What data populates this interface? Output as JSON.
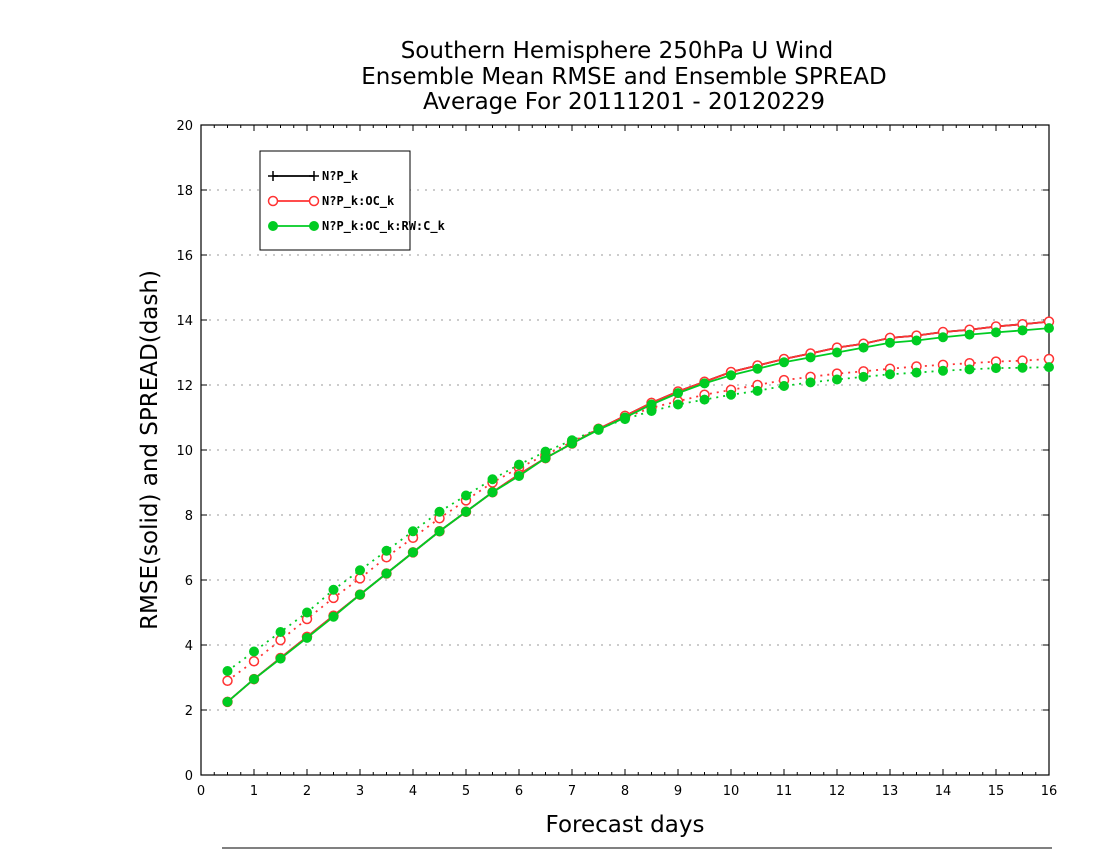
{
  "chart_data": {
    "type": "line",
    "title_lines": [
      "Southern Hemisphere 250hPa U Wind",
      "Ensemble Mean RMSE and Ensemble SPREAD",
      "Average For 20111201 - 20120229"
    ],
    "xlabel": "Forecast days",
    "ylabel": "RMSE(solid) and SPREAD(dash)",
    "xlim": [
      0,
      16
    ],
    "ylim": [
      0,
      20
    ],
    "xticks": [
      0,
      1,
      2,
      3,
      4,
      5,
      6,
      7,
      8,
      9,
      10,
      11,
      12,
      13,
      14,
      15,
      16
    ],
    "yticks": [
      0,
      2,
      4,
      6,
      8,
      10,
      12,
      14,
      16,
      18,
      20
    ],
    "grid": "horizontal dotted",
    "legend_position": "top-left",
    "x": [
      0.5,
      1,
      1.5,
      2,
      2.5,
      3,
      3.5,
      4,
      4.5,
      5,
      5.5,
      6,
      6.5,
      7,
      7.5,
      8,
      8.5,
      9,
      9.5,
      10,
      10.5,
      11,
      11.5,
      12,
      12.5,
      13,
      13.5,
      14,
      14.5,
      15,
      15.5,
      16
    ],
    "series": [
      {
        "legend": "N?P_k",
        "color": "#000000",
        "marker": "plus",
        "rmse": [
          2.25,
          2.95,
          3.6,
          4.25,
          4.9,
          5.55,
          6.2,
          6.85,
          7.5,
          8.1,
          8.7,
          9.25,
          9.75,
          10.2,
          10.65,
          11.05,
          11.45,
          11.8,
          12.1,
          12.4,
          12.6,
          12.8,
          12.97,
          13.15,
          13.27,
          13.45,
          13.52,
          13.63,
          13.7,
          13.8,
          13.87,
          13.95
        ],
        "spread": []
      },
      {
        "legend": "N?P_k:OC_k",
        "color": "#ff3333",
        "marker": "open-circle",
        "rmse": [
          2.25,
          2.95,
          3.6,
          4.25,
          4.9,
          5.55,
          6.2,
          6.85,
          7.5,
          8.1,
          8.7,
          9.25,
          9.75,
          10.2,
          10.65,
          11.05,
          11.45,
          11.8,
          12.1,
          12.4,
          12.6,
          12.8,
          12.97,
          13.15,
          13.27,
          13.45,
          13.52,
          13.63,
          13.7,
          13.8,
          13.87,
          13.95
        ],
        "spread": [
          2.9,
          3.5,
          4.15,
          4.8,
          5.45,
          6.05,
          6.7,
          7.3,
          7.9,
          8.45,
          9.0,
          9.45,
          9.85,
          10.25,
          10.65,
          11.0,
          11.3,
          11.5,
          11.7,
          11.85,
          12.0,
          12.15,
          12.25,
          12.35,
          12.42,
          12.5,
          12.57,
          12.62,
          12.67,
          12.72,
          12.75,
          12.8
        ]
      },
      {
        "legend": "N?P_k:OC_k:RW:C_k",
        "color": "#00cc22",
        "marker": "filled-circle",
        "rmse": [
          2.25,
          2.95,
          3.58,
          4.22,
          4.87,
          5.55,
          6.2,
          6.85,
          7.5,
          8.1,
          8.7,
          9.2,
          9.75,
          10.2,
          10.62,
          11.0,
          11.4,
          11.75,
          12.05,
          12.3,
          12.5,
          12.7,
          12.85,
          13.0,
          13.15,
          13.3,
          13.37,
          13.47,
          13.55,
          13.62,
          13.68,
          13.75
        ],
        "spread": [
          3.2,
          3.8,
          4.4,
          5.0,
          5.7,
          6.3,
          6.9,
          7.5,
          8.1,
          8.6,
          9.1,
          9.55,
          9.95,
          10.3,
          10.65,
          10.95,
          11.2,
          11.4,
          11.55,
          11.7,
          11.82,
          11.97,
          12.08,
          12.17,
          12.25,
          12.33,
          12.38,
          12.44,
          12.48,
          12.52,
          12.53,
          12.55
        ]
      }
    ]
  }
}
